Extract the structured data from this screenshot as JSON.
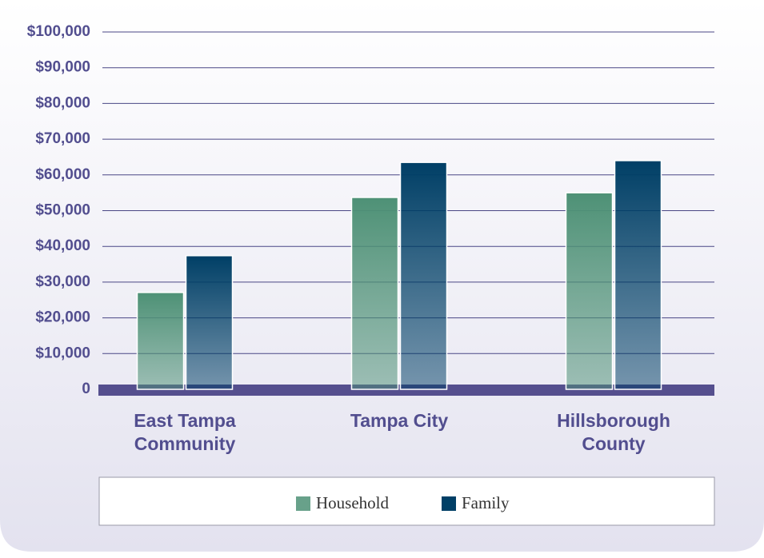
{
  "chart_data": {
    "type": "bar",
    "categories": [
      "East Tampa Community",
      "Tampa City",
      "Hillsborough County"
    ],
    "series": [
      {
        "name": "Household",
        "color": "#4e9176",
        "values": [
          27100,
          53700,
          55000
        ]
      },
      {
        "name": "Family",
        "color": "#003f66",
        "values": [
          37400,
          63500,
          64000
        ]
      }
    ],
    "ylim": [
      0,
      100000
    ],
    "yticks": [
      0,
      {
        "value": 10000,
        "label": "$10,000"
      },
      {
        "value": 20000,
        "label": "$20,000"
      },
      {
        "value": 30000,
        "label": "$30,000"
      },
      {
        "value": 40000,
        "label": "$40,000"
      },
      {
        "value": 50000,
        "label": "$50,000"
      },
      {
        "value": 60000,
        "label": "$60,000"
      },
      {
        "value": 70000,
        "label": "$70,000"
      },
      {
        "value": 80000,
        "label": "$80,000"
      },
      {
        "value": 90000,
        "label": "$90,000"
      },
      {
        "value": 100000,
        "label": "$100,000"
      }
    ],
    "grid": true,
    "legend": "bottom"
  }
}
